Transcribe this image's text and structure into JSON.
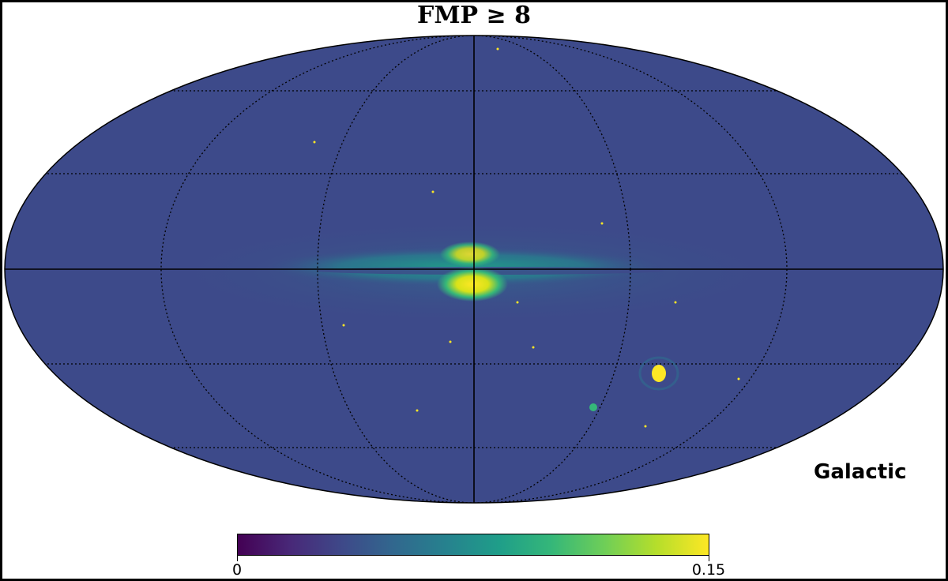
{
  "map": {
    "title": "FMP ≥ 8",
    "coordinate_system": "Galactic",
    "projection": "mollweide",
    "graticule_style": "dotted",
    "background_color": "#3d4a8a",
    "colorbar": {
      "colormap": "viridis",
      "min": 0,
      "max": 0.15,
      "min_label": "0",
      "max_label": "0.15",
      "colors": [
        "#440154",
        "#482878",
        "#3e4989",
        "#31688e",
        "#26828e",
        "#1f9e89",
        "#35b779",
        "#6ece58",
        "#b5de2b",
        "#fde725"
      ]
    },
    "features": [
      "galactic-plane-band",
      "galactic-bulge",
      "large-magellanic-cloud",
      "small-magellanic-cloud"
    ]
  }
}
